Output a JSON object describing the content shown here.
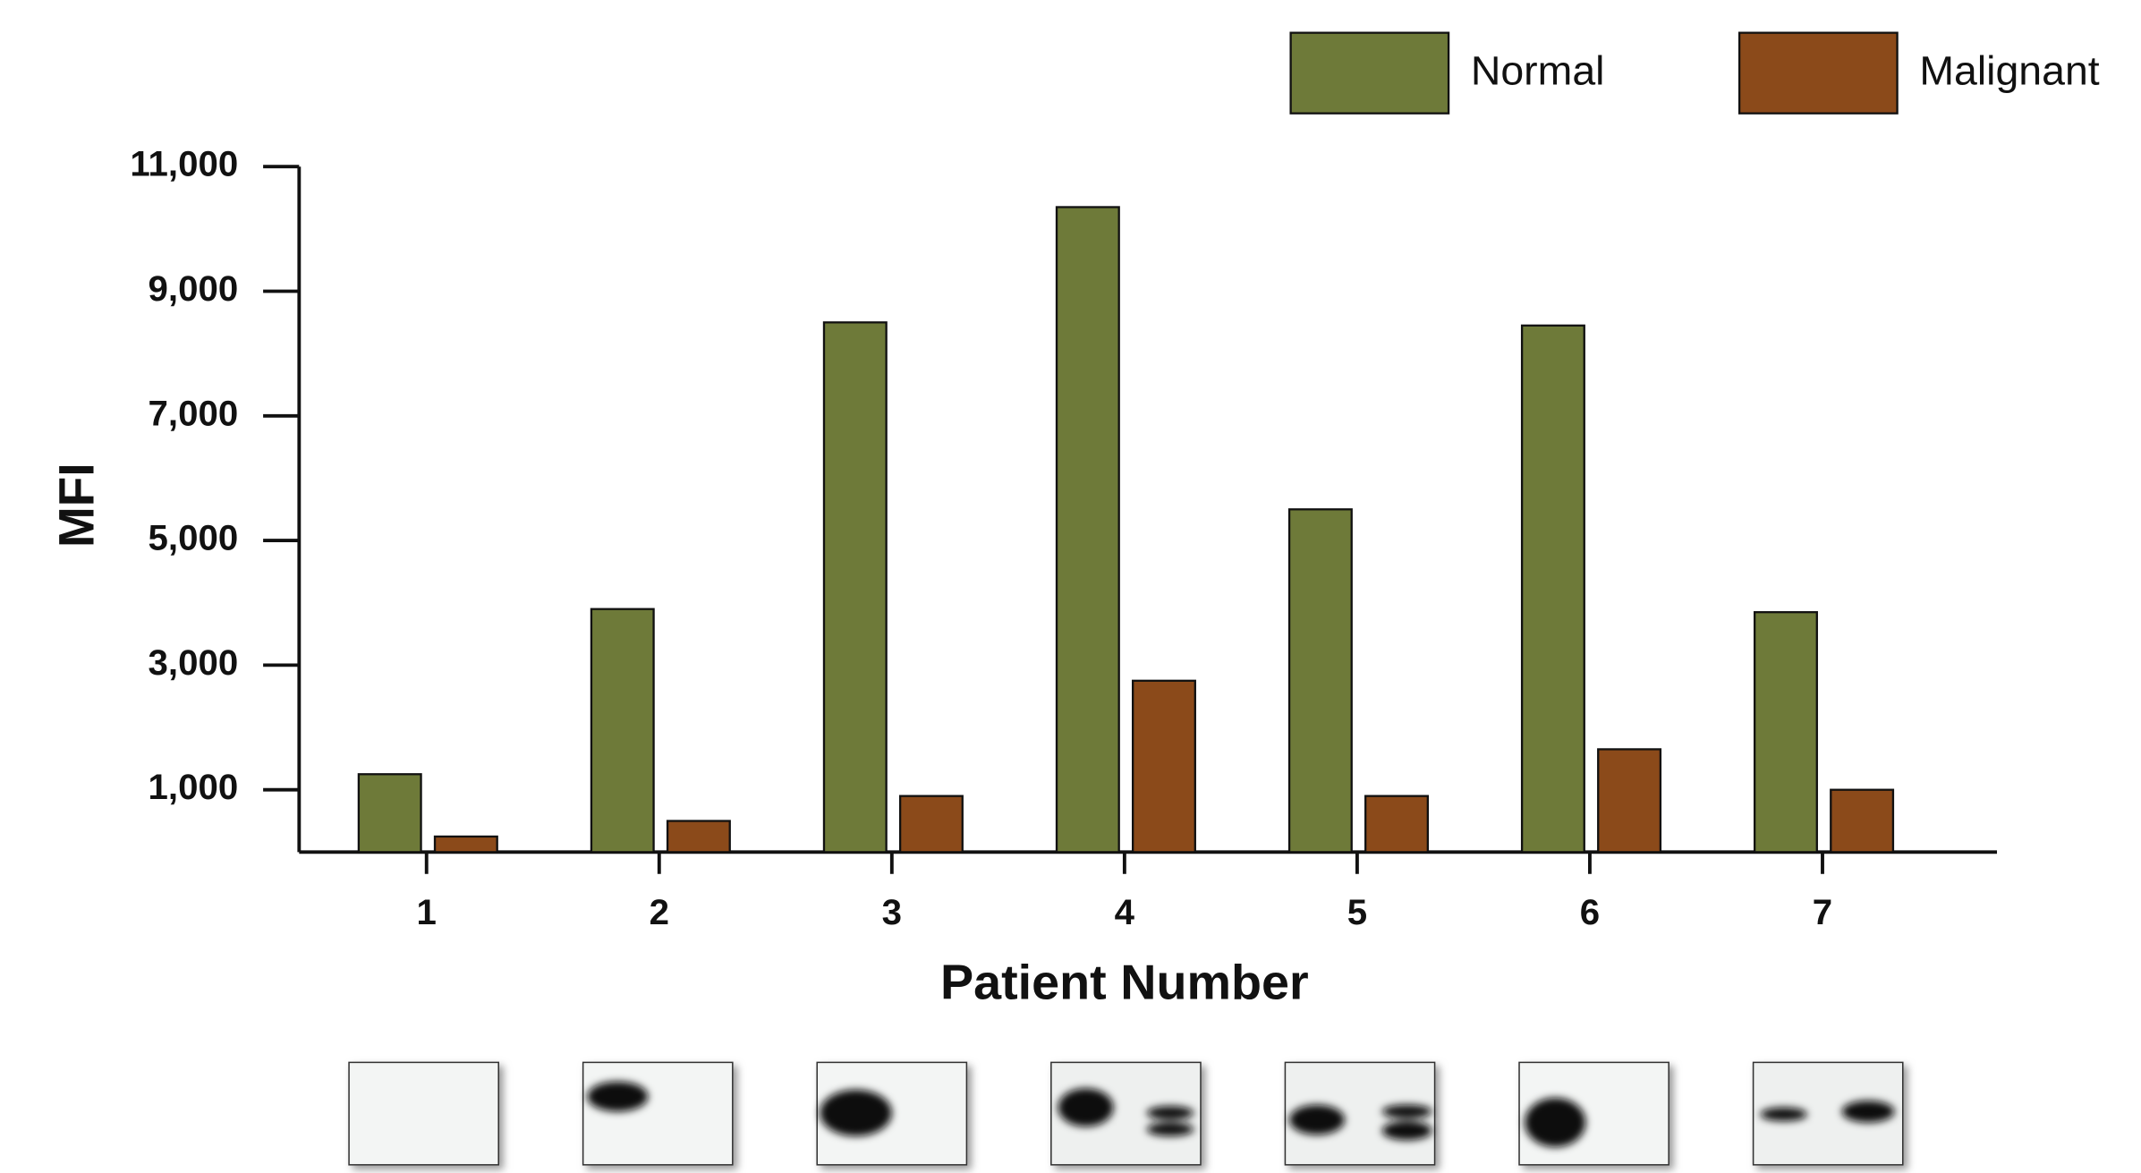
{
  "chart_data": {
    "type": "bar",
    "categories": [
      "1",
      "2",
      "3",
      "4",
      "5",
      "6",
      "7"
    ],
    "series": [
      {
        "name": "Normal",
        "color": "#6e7a39",
        "values": [
          1250,
          3900,
          8500,
          10350,
          5500,
          8450,
          3850
        ]
      },
      {
        "name": "Malignant",
        "color": "#8b4a1a",
        "values": [
          250,
          500,
          900,
          2750,
          900,
          1650,
          1000
        ]
      }
    ],
    "x_label": "Patient Number",
    "y_label": "MFI",
    "ylim": [
      0,
      11000
    ],
    "yticks": [
      {
        "value": 1000,
        "label": "1,000"
      },
      {
        "value": 3000,
        "label": "3,000"
      },
      {
        "value": 5000,
        "label": "5,000"
      },
      {
        "value": 7000,
        "label": "7,000"
      },
      {
        "value": 9000,
        "label": "9,000"
      },
      {
        "value": 11000,
        "label": "11,000"
      }
    ]
  }
}
